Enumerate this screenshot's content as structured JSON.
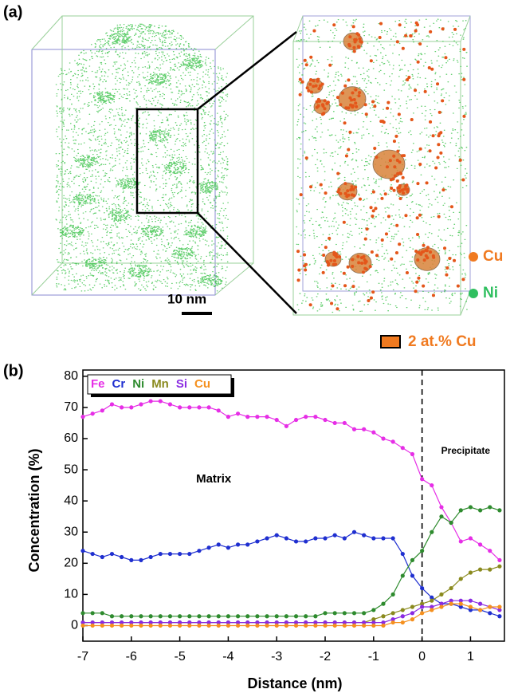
{
  "panel_a": {
    "label": "(a)",
    "scale_bar": "10 nm",
    "legend": [
      {
        "label": "Cu"
      },
      {
        "label": "Ni"
      },
      {
        "label": "2 at.% Cu"
      }
    ]
  },
  "chart_data": {
    "type": "line",
    "label": "(b)",
    "x_label": "Distance (nm)",
    "y_label": "Concentration (%)",
    "annotations": [
      {
        "text": "Matrix",
        "x": -4.3,
        "y": 47
      },
      {
        "text": "Precipitate",
        "x": 0.9,
        "y": 56
      }
    ],
    "vline": 0,
    "xlim": [
      -7,
      1.7
    ],
    "xticks": [
      -7,
      -6,
      -5,
      -4,
      -3,
      -2,
      -1,
      0,
      1
    ],
    "ylim": [
      -5,
      82
    ],
    "yticks": [
      0,
      10,
      20,
      30,
      40,
      50,
      60,
      70,
      80
    ],
    "x": [
      -7,
      -6.8,
      -6.6,
      -6.4,
      -6.2,
      -6,
      -5.8,
      -5.6,
      -5.4,
      -5.2,
      -5,
      -4.8,
      -4.6,
      -4.4,
      -4.2,
      -4,
      -3.8,
      -3.6,
      -3.4,
      -3.2,
      -3,
      -2.8,
      -2.6,
      -2.4,
      -2.2,
      -2,
      -1.8,
      -1.6,
      -1.4,
      -1.2,
      -1,
      -0.8,
      -0.6,
      -0.4,
      -0.2,
      0,
      0.2,
      0.4,
      0.6,
      0.8,
      1,
      1.2,
      1.4,
      1.6
    ],
    "legend_position": "upper left",
    "series": [
      {
        "name": "Fe",
        "color": "#e62ee6",
        "values": [
          67,
          68,
          69,
          71,
          70,
          70,
          71,
          72,
          72,
          71,
          70,
          70,
          70,
          70,
          69,
          67,
          68,
          67,
          67,
          67,
          66,
          64,
          66,
          67,
          67,
          66,
          65,
          65,
          63,
          63,
          62,
          60,
          59,
          57,
          55,
          47,
          45,
          38,
          33,
          27,
          28,
          26,
          24,
          21
        ]
      },
      {
        "name": "Cr",
        "color": "#1f2fd0",
        "values": [
          24,
          23,
          22,
          23,
          22,
          21,
          21,
          22,
          23,
          23,
          23,
          23,
          24,
          25,
          26,
          25,
          26,
          26,
          27,
          28,
          29,
          28,
          27,
          27,
          28,
          28,
          29,
          28,
          30,
          29,
          28,
          28,
          28,
          23,
          16,
          12,
          9,
          7,
          7,
          6,
          5,
          5,
          4,
          3
        ]
      },
      {
        "name": "Ni",
        "color": "#2e8b2e",
        "values": [
          4,
          4,
          4,
          3,
          3,
          3,
          3,
          3,
          3,
          3,
          3,
          3,
          3,
          3,
          3,
          3,
          3,
          3,
          3,
          3,
          3,
          3,
          3,
          3,
          3,
          4,
          4,
          4,
          4,
          4,
          5,
          7,
          10,
          16,
          21,
          24,
          30,
          35,
          33,
          37,
          38,
          37,
          38,
          37
        ]
      },
      {
        "name": "Mn",
        "color": "#8a8a1e",
        "values": [
          1,
          1,
          1,
          1,
          1,
          1,
          1,
          1,
          1,
          1,
          1,
          1,
          1,
          1,
          1,
          1,
          1,
          1,
          1,
          1,
          1,
          1,
          1,
          1,
          1,
          1,
          1,
          1,
          1,
          1,
          2,
          3,
          4,
          5,
          6,
          7,
          8,
          10,
          12,
          15,
          17,
          18,
          18,
          19
        ]
      },
      {
        "name": "Si",
        "color": "#8a2be2",
        "values": [
          1,
          1,
          1,
          1,
          1,
          1,
          1,
          1,
          1,
          1,
          1,
          1,
          1,
          1,
          1,
          1,
          1,
          1,
          1,
          1,
          1,
          1,
          1,
          1,
          1,
          1,
          1,
          1,
          1,
          1,
          1,
          1,
          2,
          3,
          4,
          6,
          6,
          7,
          8,
          8,
          8,
          7,
          6,
          5
        ]
      },
      {
        "name": "Cu",
        "color": "#f5901e",
        "values": [
          0,
          0,
          0,
          0,
          0,
          0,
          0,
          0,
          0,
          0,
          0,
          0,
          0,
          0,
          0,
          0,
          0,
          0,
          0,
          0,
          0,
          0,
          0,
          0,
          0,
          0,
          0,
          0,
          0,
          0,
          0,
          0,
          1,
          1,
          2,
          4,
          5,
          6,
          7,
          7,
          6,
          5,
          6,
          6
        ]
      }
    ]
  }
}
